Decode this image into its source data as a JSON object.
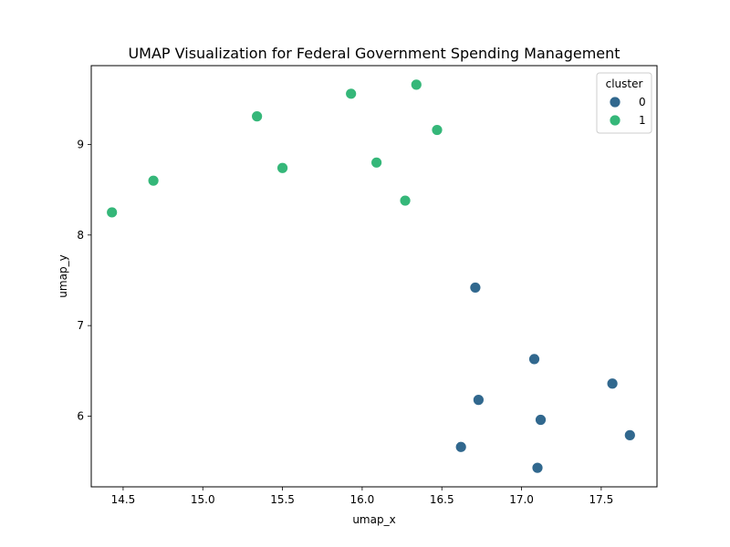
{
  "chart_data": {
    "type": "scatter",
    "title": "UMAP Visualization for Federal Government Spending Management",
    "xlabel": "umap_x",
    "ylabel": "umap_y",
    "xlim": [
      14.3,
      17.85
    ],
    "ylim": [
      5.22,
      9.87
    ],
    "xticks": [
      14.5,
      15.0,
      15.5,
      16.0,
      16.5,
      17.0,
      17.5
    ],
    "xtick_labels": [
      "14.5",
      "15.0",
      "15.5",
      "16.0",
      "16.5",
      "17.0",
      "17.5"
    ],
    "yticks": [
      6,
      7,
      8,
      9
    ],
    "ytick_labels": [
      "6",
      "7",
      "8",
      "9"
    ],
    "grid": false,
    "legend": {
      "title": "cluster",
      "placement": "top-right"
    },
    "series": [
      {
        "name": "0",
        "color": "#31688e",
        "points": [
          {
            "x": 16.71,
            "y": 7.42
          },
          {
            "x": 17.08,
            "y": 6.63
          },
          {
            "x": 17.57,
            "y": 6.36
          },
          {
            "x": 16.73,
            "y": 6.18
          },
          {
            "x": 17.12,
            "y": 5.96
          },
          {
            "x": 17.68,
            "y": 5.79
          },
          {
            "x": 16.62,
            "y": 5.66
          },
          {
            "x": 17.1,
            "y": 5.43
          }
        ]
      },
      {
        "name": "1",
        "color": "#35b779",
        "points": [
          {
            "x": 16.34,
            "y": 9.66
          },
          {
            "x": 15.93,
            "y": 9.56
          },
          {
            "x": 15.34,
            "y": 9.31
          },
          {
            "x": 16.47,
            "y": 9.16
          },
          {
            "x": 16.09,
            "y": 8.8
          },
          {
            "x": 15.5,
            "y": 8.74
          },
          {
            "x": 14.69,
            "y": 8.6
          },
          {
            "x": 16.27,
            "y": 8.38
          },
          {
            "x": 14.43,
            "y": 8.25
          }
        ]
      }
    ]
  }
}
